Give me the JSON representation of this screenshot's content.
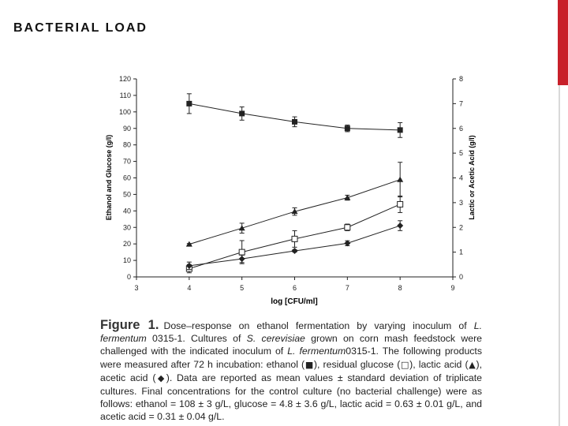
{
  "slide": {
    "title": "BACTERIAL LOAD",
    "accent_color": "#c8202a"
  },
  "chart_data": {
    "type": "line",
    "x_label": "log [CFU/ml]",
    "y_left_label": "Ethanol and Glucose (g/l)",
    "y_right_label": "Lactic or Acetic Acid (g/l)",
    "x_range": [
      3,
      9
    ],
    "x_ticks": [
      3,
      4,
      5,
      6,
      7,
      8,
      9
    ],
    "y_left_range": [
      0,
      120
    ],
    "y_left_ticks": [
      0,
      10,
      20,
      30,
      40,
      50,
      60,
      70,
      80,
      90,
      100,
      110,
      120
    ],
    "y_right_range": [
      0,
      8
    ],
    "y_right_ticks": [
      0,
      1,
      2,
      3,
      4,
      5,
      6,
      7,
      8
    ],
    "grid": false,
    "legend": "none",
    "series": [
      {
        "id": "ethanol",
        "axis": "left",
        "marker": "filled-square",
        "x": [
          4,
          5,
          6,
          7,
          8
        ],
        "y": [
          105,
          99,
          94,
          90,
          89
        ],
        "err": [
          6,
          4,
          3,
          2,
          4.5
        ]
      },
      {
        "id": "glucose",
        "axis": "left",
        "marker": "open-square",
        "x": [
          4,
          5,
          6,
          7,
          8
        ],
        "y": [
          5,
          15,
          23,
          30,
          44
        ],
        "err": [
          2.5,
          7,
          5,
          2,
          5
        ]
      },
      {
        "id": "lactic-acid",
        "axis": "right",
        "marker": "filled-triangle",
        "x": [
          4,
          5,
          6,
          7,
          8
        ],
        "y": [
          1.32,
          1.97,
          2.64,
          3.2,
          3.93
        ],
        "err": [
          0.03,
          0.2,
          0.15,
          0.1,
          0.7
        ]
      },
      {
        "id": "acetic-acid",
        "axis": "right",
        "marker": "filled-diamond",
        "x": [
          4,
          5,
          6,
          7,
          8
        ],
        "y": [
          0.45,
          0.73,
          1.05,
          1.36,
          2.07
        ],
        "err": [
          0.15,
          0.15,
          0.05,
          0.1,
          0.2
        ]
      }
    ]
  },
  "caption": {
    "figure_label": "Figure 1.",
    "part1": "Dose–response on ethanol fermentation by varying inoculum of ",
    "lf1": "L. fermentum",
    "part2": " 0315-1. Cultures of ",
    "sc": "S. cerevisiae",
    "part3": " grown on corn mash feedstock were challenged with the indicated inoculum of ",
    "lf2": "L. fermentum",
    "part4": "0315-1. The following products were measured after 72 h incubation: ethanol (",
    "sym_ethanol": "■",
    "part5": "), residual glucose (",
    "sym_glucose": "□",
    "part6": "), lactic acid (",
    "sym_lactic": "▲",
    "part7": "), acetic acid (",
    "sym_acetic": "◆",
    "part8": "). Data are reported as mean values ± standard deviation of triplicate cultures. Final concentrations for the control culture (no bacterial challenge) were as follows: ethanol = 108 ± 3 g/L, glucose = 4.8 ± 3.6 g/L, lactic acid = 0.63 ± 0.01 g/L, and acetic acid = 0.31 ± 0.04 g/L."
  }
}
